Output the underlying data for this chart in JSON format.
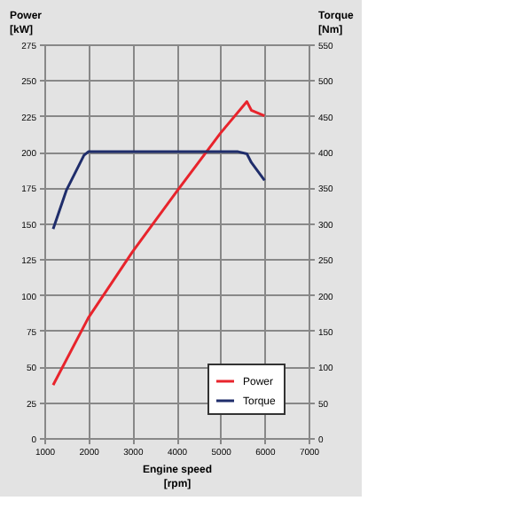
{
  "chart_data": {
    "type": "line",
    "xlabel": "Engine speed\n[rpm]",
    "ylabel": "Power\n[kW]",
    "y2label": "Torque\n[Nm]",
    "xlim": [
      1000,
      7000
    ],
    "xticks": [
      1000,
      2000,
      3000,
      4000,
      5000,
      6000,
      7000
    ],
    "ylim": [
      0,
      275
    ],
    "yticks": [
      0,
      25,
      50,
      75,
      100,
      125,
      150,
      175,
      200,
      225,
      250,
      275
    ],
    "y2lim": [
      0,
      550
    ],
    "y2ticks": [
      0,
      50,
      100,
      150,
      200,
      250,
      300,
      350,
      400,
      450,
      500,
      550
    ],
    "grid": true,
    "legend": "bottom right",
    "marker": "none",
    "line_style": "solid",
    "series": [
      {
        "name": "Power",
        "color": "#e8242c",
        "x": [
          1200,
          2000,
          3000,
          4000,
          5000,
          5600,
          5700,
          6000
        ],
        "values": [
          37,
          84,
          130,
          172,
          213,
          235,
          229,
          225
        ]
      },
      {
        "name": "Torque",
        "color": "#1f2d6b",
        "axis": "y2",
        "x": [
          1200,
          1500,
          1900,
          2000,
          3000,
          4000,
          5000,
          5400,
          5600,
          5700,
          6000
        ],
        "values": [
          292,
          346,
          395,
          400,
          400,
          400,
          400,
          400,
          397,
          385,
          360
        ]
      }
    ]
  }
}
